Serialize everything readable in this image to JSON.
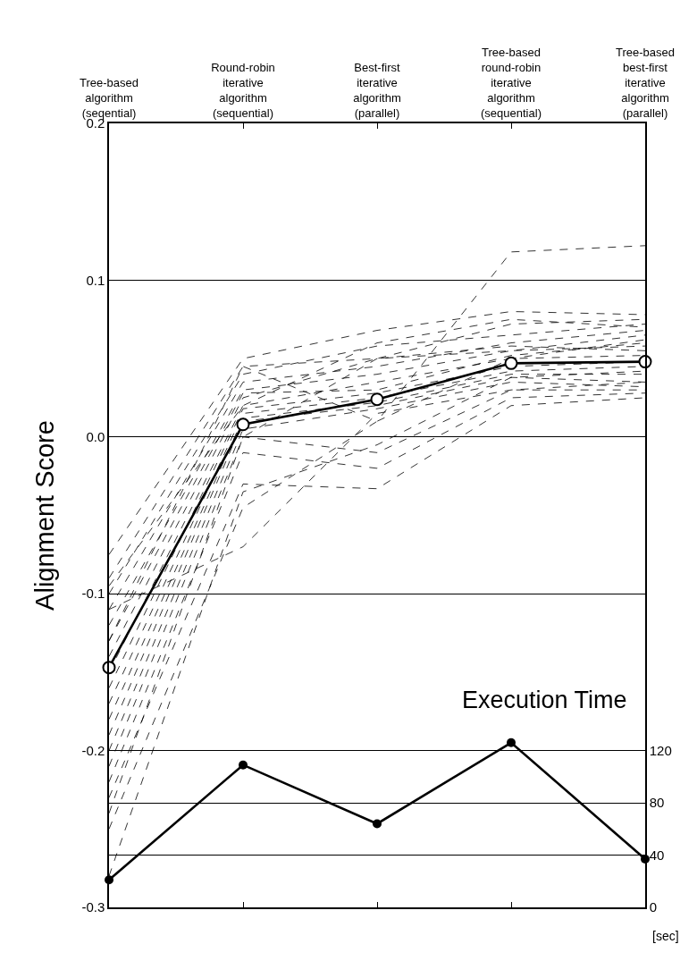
{
  "chart_data": {
    "type": "line",
    "categories": [
      "Tree-based\nalgorithm\n(seqential)",
      "Round-robin\niterative\nalgorithm\n(sequential)",
      "Best-first\niterative\nalgorithm\n(parallel)",
      "Tree-based\nround-robin\niterative\nalgorithm\n(sequential)",
      "Tree-based\nbest-first\niterative\nalgorithm\n(parallel)"
    ],
    "ylabel": "Alignment Score",
    "y2label": "[sec]",
    "annotations": [
      "Execution Time"
    ],
    "ylim": [
      -0.3,
      0.2
    ],
    "yticks": [
      -0.3,
      -0.2,
      -0.1,
      {
        "value": 0,
        "label": "0.0"
      },
      0.1,
      0.2
    ],
    "y2lim": [
      0,
      600
    ],
    "y2ticks": [
      0,
      40,
      80,
      120
    ],
    "grid": true,
    "series": [
      {
        "color": "#000000",
        "line_style": "dashed",
        "marker": "none",
        "values": [
          -0.075,
          0.05,
          0.068,
          0.08,
          0.078
        ]
      },
      {
        "color": "#000000",
        "line_style": "dashed",
        "marker": "none",
        "values": [
          -0.09,
          0.045,
          0.05,
          0.072,
          0.075
        ]
      },
      {
        "color": "#000000",
        "line_style": "dashed",
        "marker": "none",
        "values": [
          -0.1,
          0.04,
          0.058,
          0.065,
          0.072
        ]
      },
      {
        "color": "#000000",
        "line_style": "dashed",
        "marker": "none",
        "values": [
          -0.11,
          0.035,
          0.045,
          0.06,
          0.068
        ]
      },
      {
        "color": "#000000",
        "line_style": "dashed",
        "marker": "none",
        "values": [
          -0.12,
          0.03,
          0.04,
          0.055,
          0.065
        ]
      },
      {
        "color": "#000000",
        "line_style": "dashed",
        "marker": "none",
        "values": [
          -0.13,
          0.028,
          0.03,
          0.052,
          0.06
        ]
      },
      {
        "color": "#000000",
        "line_style": "dashed",
        "marker": "none",
        "values": [
          -0.14,
          0.025,
          0.05,
          0.058,
          0.055
        ]
      },
      {
        "color": "#000000",
        "line_style": "dashed",
        "marker": "none",
        "values": [
          -0.15,
          0.02,
          0.035,
          0.05,
          0.052
        ]
      },
      {
        "color": "#000000",
        "line_style": "dashed",
        "marker": "none",
        "values": [
          -0.16,
          0.018,
          0.028,
          0.045,
          0.048
        ]
      },
      {
        "color": "#000000",
        "line_style": "dashed",
        "marker": "none",
        "values": [
          -0.17,
          0.015,
          0.025,
          0.042,
          0.045
        ]
      },
      {
        "color": "#000000",
        "line_style": "dashed",
        "marker": "none",
        "values": [
          -0.18,
          0.012,
          0.022,
          0.04,
          0.04
        ]
      },
      {
        "color": "#000000",
        "line_style": "dashed",
        "marker": "none",
        "values": [
          -0.19,
          0.01,
          0.02,
          0.038,
          0.035
        ]
      },
      {
        "color": "#000000",
        "line_style": "dashed",
        "marker": "none",
        "values": [
          -0.2,
          0.005,
          0.018,
          0.035,
          0.032
        ]
      },
      {
        "color": "#000000",
        "line_style": "dashed",
        "marker": "none",
        "values": [
          -0.21,
          0.0,
          -0.01,
          0.03,
          0.03
        ]
      },
      {
        "color": "#000000",
        "line_style": "dashed",
        "marker": "none",
        "values": [
          -0.22,
          -0.01,
          -0.02,
          0.025,
          0.028
        ]
      },
      {
        "color": "#000000",
        "line_style": "dashed",
        "marker": "none",
        "values": [
          -0.23,
          -0.03,
          -0.033,
          0.02,
          0.025
        ]
      },
      {
        "color": "#000000",
        "line_style": "dashed",
        "marker": "none",
        "values": [
          -0.25,
          -0.045,
          0.01,
          0.118,
          0.122
        ]
      },
      {
        "color": "#000000",
        "line_style": "dashed",
        "marker": "none",
        "values": [
          -0.28,
          -0.035,
          -0.005,
          0.038,
          0.042
        ]
      },
      {
        "color": "#000000",
        "line_style": "dashed",
        "marker": "none",
        "values": [
          -0.13,
          0.045,
          0.01,
          0.05,
          0.062
        ]
      },
      {
        "color": "#000000",
        "line_style": "dashed",
        "marker": "none",
        "values": [
          -0.11,
          -0.07,
          0.015,
          0.03,
          0.035
        ]
      },
      {
        "color": "#000000",
        "line_style": "dashed",
        "marker": "none",
        "values": [
          -0.24,
          0.0,
          0.05,
          0.055,
          0.058
        ]
      },
      {
        "color": "#000000",
        "line_style": "dashed",
        "marker": "none",
        "values": [
          -0.095,
          0.02,
          0.06,
          0.075,
          0.07
        ]
      },
      {
        "color": "#000000",
        "line_style": "solid",
        "marker": "circle-open",
        "values": [
          -0.147,
          0.008,
          0.024,
          0.047,
          0.048
        ]
      },
      {
        "color": "#000000",
        "line_style": "solid",
        "marker": "circle",
        "axis": "y2",
        "values": [
          21,
          109,
          64,
          126,
          37
        ]
      }
    ]
  }
}
